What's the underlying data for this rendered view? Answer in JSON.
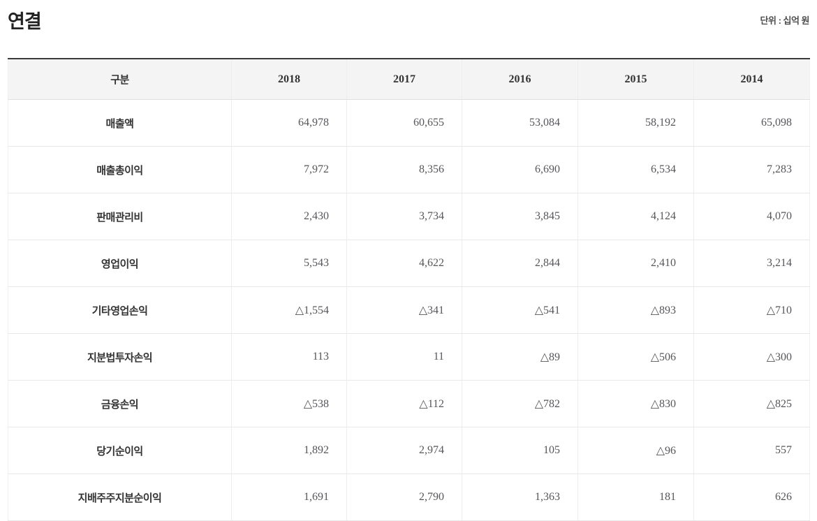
{
  "page": {
    "title": "연결",
    "unit_label": "단위 : 십억 원"
  },
  "colors": {
    "table-top-border": "#3a3a3a",
    "header-bg": "#f4f4f4",
    "border-light": "#e1e1e1"
  },
  "table": {
    "columns": [
      "구분",
      "2018",
      "2017",
      "2016",
      "2015",
      "2014"
    ],
    "rows": [
      {
        "label": "매출액",
        "values": [
          "64,978",
          "60,655",
          "53,084",
          "58,192",
          "65,098"
        ]
      },
      {
        "label": "매출총이익",
        "values": [
          "7,972",
          "8,356",
          "6,690",
          "6,534",
          "7,283"
        ]
      },
      {
        "label": "판매관리비",
        "values": [
          "2,430",
          "3,734",
          "3,845",
          "4,124",
          "4,070"
        ]
      },
      {
        "label": "영업이익",
        "values": [
          "5,543",
          "4,622",
          "2,844",
          "2,410",
          "3,214"
        ]
      },
      {
        "label": "기타영업손익",
        "values": [
          "△1,554",
          "△341",
          "△541",
          "△893",
          "△710"
        ]
      },
      {
        "label": "지분법투자손익",
        "values": [
          "113",
          "11",
          "△89",
          "△506",
          "△300"
        ]
      },
      {
        "label": "금융손익",
        "values": [
          "△538",
          "△112",
          "△782",
          "△830",
          "△825"
        ]
      },
      {
        "label": "당기순이익",
        "values": [
          "1,892",
          "2,974",
          "105",
          "△96",
          "557"
        ]
      },
      {
        "label": "지배주주지분순이익",
        "values": [
          "1,691",
          "2,790",
          "1,363",
          "181",
          "626"
        ]
      }
    ]
  }
}
